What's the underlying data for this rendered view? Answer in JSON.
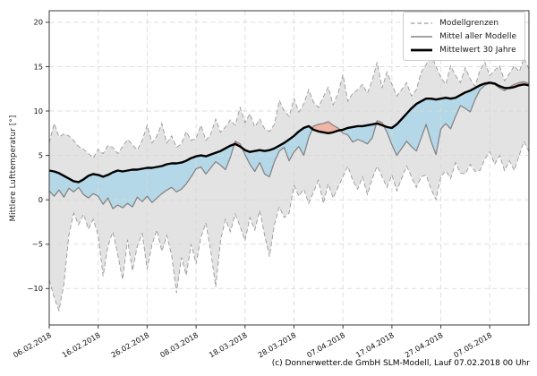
{
  "figure": {
    "caption": "(c) Donnerwetter.de GmbH SLM-Modell, Lauf 07.02.2018 00 Uhr"
  },
  "chart_data": {
    "type": "line",
    "title": "",
    "xlabel": "",
    "ylabel": "Mittlere Lufttemperatur [°]",
    "ylim": [
      -14.1,
      21.3
    ],
    "yticks": [
      20,
      15,
      10,
      5,
      0,
      -5,
      -10
    ],
    "ytick_labels": [
      "20",
      "15",
      "10",
      "5",
      "0",
      "−5",
      "−10"
    ],
    "x_start_date": "06.02.2018",
    "x_days_total": 99,
    "x_tick_days": [
      0,
      10,
      20,
      30,
      40,
      50,
      60,
      70,
      80,
      90
    ],
    "x_tick_labels": [
      "06.02.2018",
      "16.02.2018",
      "26.02.2018",
      "08.03.2018",
      "18.03.2018",
      "28.03.2018",
      "07.04.2018",
      "17.04.2018",
      "27.04.2018",
      "07.05.2018"
    ],
    "grid": true,
    "legend_position": "upper right",
    "legend": [
      {
        "label": "Modellgrenzen",
        "style": "dashed-gray"
      },
      {
        "label": "Mittel aller Modelle",
        "style": "solid-gray"
      },
      {
        "label": "Mittelwert 30 Jahre",
        "style": "thick-black"
      }
    ],
    "series": [
      {
        "name": "Modellgrenzen (obere Grenze)",
        "values": [
          6.4,
          8.6,
          7.1,
          7.4,
          7.2,
          6.7,
          6.0,
          5.7,
          5.2,
          4.7,
          5.7,
          5.2,
          6.1,
          5.9,
          5.2,
          6.0,
          6.8,
          6.2,
          5.6,
          6.7,
          8.4,
          6.4,
          7.2,
          8.6,
          6.4,
          7.2,
          5.9,
          6.3,
          7.7,
          6.7,
          6.9,
          8.4,
          6.7,
          7.4,
          9.1,
          7.6,
          8.2,
          9.0,
          8.4,
          10.4,
          8.7,
          9.7,
          8.2,
          9.1,
          8.0,
          7.7,
          8.5,
          11.2,
          10.0,
          9.4,
          11.4,
          9.9,
          10.8,
          12.4,
          11.0,
          10.4,
          11.6,
          12.7,
          10.7,
          12.0,
          14.1,
          11.1,
          12.0,
          12.4,
          13.0,
          12.0,
          13.5,
          15.5,
          12.6,
          14.4,
          13.0,
          11.7,
          12.4,
          13.2,
          11.7,
          12.4,
          14.4,
          15.2,
          16.5,
          15.0,
          13.8,
          13.0,
          15.1,
          14.0,
          13.2,
          14.9,
          13.6,
          12.8,
          14.6,
          15.5,
          14.0,
          14.6,
          15.1,
          13.4,
          14.2,
          15.1,
          14.4,
          16.0,
          14.7
        ]
      },
      {
        "name": "Modellgrenzen (untere Grenze)",
        "values": [
          -9.0,
          -11.0,
          -12.5,
          -9.5,
          -4.0,
          -1.5,
          -2.8,
          -1.6,
          -3.3,
          -2.2,
          -4.0,
          -8.6,
          -5.2,
          -3.6,
          -6.2,
          -9.0,
          -4.5,
          -8.0,
          -5.2,
          -3.8,
          -7.8,
          -5.0,
          -3.4,
          -5.8,
          -4.0,
          -6.2,
          -10.5,
          -6.5,
          -8.5,
          -5.0,
          -7.2,
          -4.2,
          -2.6,
          -5.8,
          -9.8,
          -4.6,
          -2.2,
          -3.6,
          -1.6,
          -3.0,
          -4.6,
          -2.0,
          -3.4,
          -1.2,
          -4.0,
          -6.4,
          -2.8,
          -0.8,
          -2.0,
          -1.5,
          1.6,
          0.4,
          1.2,
          -0.4,
          0.9,
          2.2,
          -0.4,
          1.8,
          0.2,
          1.4,
          2.6,
          3.8,
          2.2,
          1.2,
          2.6,
          0.6,
          2.4,
          3.8,
          2.6,
          1.4,
          2.8,
          1.0,
          2.4,
          3.8,
          2.6,
          1.4,
          2.6,
          2.8,
          1.2,
          0.0,
          2.6,
          3.3,
          2.4,
          4.2,
          3.0,
          2.9,
          4.0,
          3.2,
          3.3,
          4.6,
          5.4,
          4.0,
          5.0,
          3.3,
          4.4,
          3.3,
          5.0,
          6.6,
          5.4
        ]
      },
      {
        "name": "Mittel aller Modelle",
        "values": [
          1.0,
          0.4,
          1.1,
          0.3,
          1.3,
          0.9,
          1.4,
          0.6,
          0.2,
          0.7,
          0.4,
          -0.5,
          0.2,
          -1.0,
          -0.6,
          -0.9,
          -0.4,
          -0.8,
          0.3,
          -0.2,
          0.4,
          -0.3,
          0.2,
          0.7,
          1.1,
          1.4,
          0.9,
          1.2,
          1.8,
          2.6,
          3.5,
          3.7,
          2.9,
          3.6,
          4.3,
          3.9,
          3.4,
          4.8,
          6.6,
          6.3,
          5.1,
          4.0,
          3.2,
          4.2,
          2.9,
          2.6,
          4.3,
          5.5,
          5.9,
          4.4,
          5.4,
          6.0,
          5.0,
          7.0,
          8.3,
          8.5,
          8.6,
          8.8,
          8.4,
          8.1,
          7.5,
          7.3,
          6.5,
          6.8,
          6.6,
          6.3,
          7.0,
          8.9,
          8.7,
          7.6,
          6.2,
          5.0,
          5.8,
          6.6,
          6.0,
          5.5,
          7.0,
          8.5,
          6.6,
          5.1,
          8.0,
          8.6,
          8.0,
          9.4,
          10.6,
          10.3,
          9.9,
          11.3,
          12.4,
          12.9,
          13.1,
          13.0,
          12.6,
          12.3,
          12.7,
          13.0,
          13.2,
          13.3,
          13.1
        ]
      },
      {
        "name": "Mittelwert 30 Jahre",
        "values": [
          3.3,
          3.2,
          3.0,
          2.7,
          2.4,
          2.1,
          2.0,
          2.3,
          2.7,
          2.9,
          2.8,
          2.6,
          2.8,
          3.1,
          3.3,
          3.2,
          3.3,
          3.4,
          3.4,
          3.5,
          3.6,
          3.6,
          3.7,
          3.8,
          4.0,
          4.1,
          4.1,
          4.2,
          4.4,
          4.7,
          4.9,
          5.0,
          4.9,
          5.1,
          5.3,
          5.5,
          5.8,
          6.1,
          6.3,
          6.0,
          5.6,
          5.4,
          5.5,
          5.6,
          5.5,
          5.6,
          5.8,
          6.1,
          6.4,
          6.8,
          7.2,
          7.7,
          8.1,
          8.3,
          7.9,
          7.7,
          7.6,
          7.5,
          7.6,
          7.8,
          7.9,
          8.1,
          8.2,
          8.3,
          8.3,
          8.4,
          8.5,
          8.6,
          8.4,
          8.2,
          8.1,
          8.5,
          9.1,
          9.7,
          10.3,
          10.8,
          11.1,
          11.4,
          11.4,
          11.3,
          11.4,
          11.5,
          11.4,
          11.5,
          11.8,
          12.1,
          12.3,
          12.6,
          12.9,
          13.1,
          13.2,
          13.1,
          12.8,
          12.6,
          12.6,
          12.7,
          12.9,
          13.0,
          12.9
        ]
      }
    ],
    "colors": {
      "band": "#e3e3e3",
      "bound_line": "#999999",
      "model_mean_line": "#858585",
      "climate_line": "#000000",
      "fill_below_mean": "#b5d8e8",
      "fill_above_mean": "#efb5a6",
      "grid": "#d9d9d9",
      "spine": "#3a3a3a",
      "tick_text": "#111111"
    }
  }
}
